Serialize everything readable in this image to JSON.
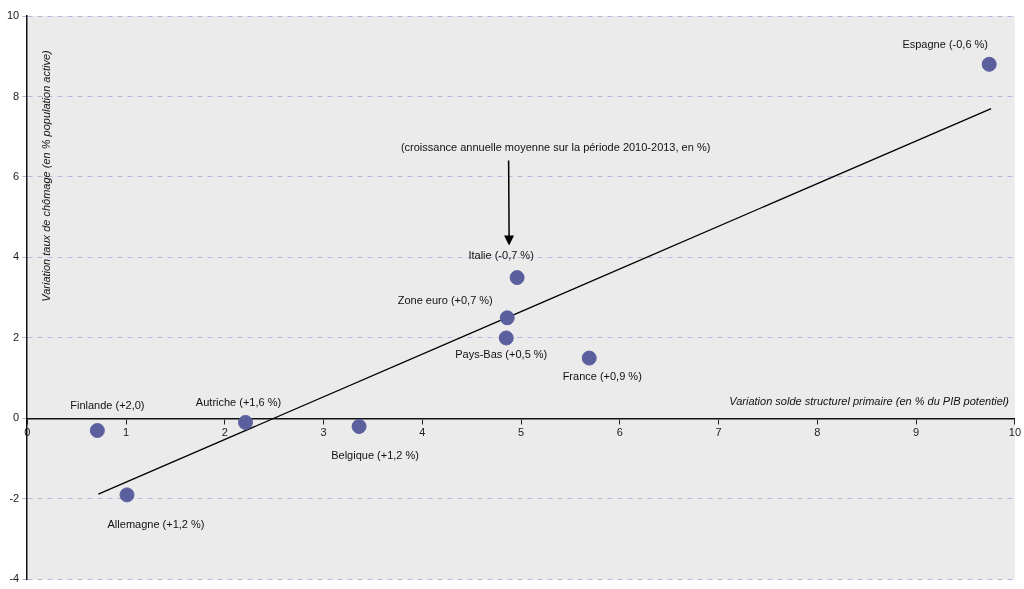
{
  "chart_data": {
    "type": "scatter",
    "xlabel": "Variation solde structurel primaire (en % du PIB potentiel)",
    "ylabel": "Variation taux de chômage (en % population active)",
    "xlim": [
      0,
      10
    ],
    "ylim": [
      -4,
      10
    ],
    "xticks": [
      0,
      1,
      2,
      3,
      4,
      5,
      6,
      7,
      8,
      9,
      10
    ],
    "yticks": [
      -4,
      -2,
      0,
      2,
      4,
      6,
      8,
      10
    ],
    "grid": "y",
    "series": [
      {
        "marker": "circle",
        "color": "#5b5f9e",
        "x": [
          0.71,
          1.01,
          2.21,
          3.36,
          4.85,
          4.86,
          4.96,
          5.69,
          9.74
        ],
        "values": [
          -0.3,
          -1.9,
          -0.1,
          -0.2,
          2.0,
          2.5,
          3.5,
          1.5,
          8.8
        ]
      },
      {
        "type": "line",
        "marker": "none",
        "color": "#000000",
        "line_style": "solid",
        "x": [
          0.72,
          9.76
        ],
        "values": [
          -1.88,
          7.7
        ]
      }
    ],
    "annotations": [
      "(croissance annuelle moyenne sur la période 2010-2013, en %)",
      {
        "text": "Finlande (+2,0)",
        "x": 0.71,
        "y": -0.3
      },
      {
        "text": "Allemagne (+1,2 %)",
        "x": 1.01,
        "y": -1.9
      },
      {
        "text": "Autriche (+1,6 %)",
        "x": 2.21,
        "y": -0.1
      },
      {
        "text": "Belgique (+1,2 %)",
        "x": 3.36,
        "y": -0.2
      },
      {
        "text": "Pays-Bas (+0,5 %)",
        "x": 4.85,
        "y": 2.0
      },
      {
        "text": "Zone euro (+0,7 %)",
        "x": 4.86,
        "y": 2.5
      },
      {
        "text": "Italie (-0,7 %)",
        "x": 4.96,
        "y": 3.5
      },
      {
        "text": "France (+0,9 %)",
        "x": 5.69,
        "y": 1.5
      },
      {
        "text": "Espagne (-0,6 %)",
        "x": 9.74,
        "y": 8.8
      }
    ]
  }
}
